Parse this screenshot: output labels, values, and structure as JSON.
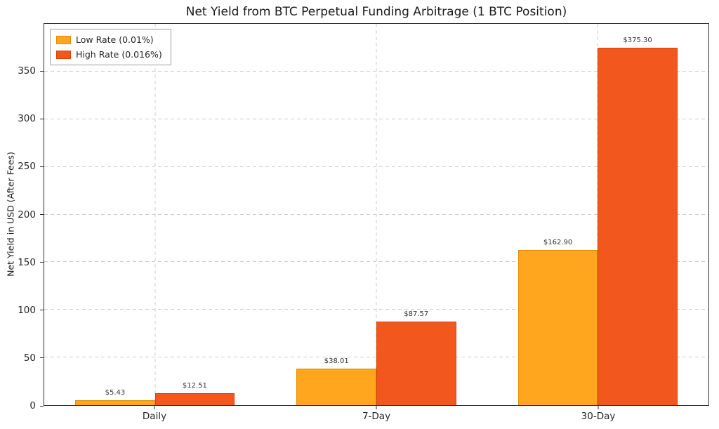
{
  "chart_data": {
    "type": "bar",
    "title": "Net Yield from BTC Perpetual Funding Arbitrage (1 BTC Position)",
    "xlabel": "",
    "ylabel": "Net Yield in USD (After Fees)",
    "categories": [
      "Daily",
      "7-Day",
      "30-Day"
    ],
    "series": [
      {
        "name": "Low Rate (0.01%)",
        "color": "#FFA51E",
        "edge": "#E08E00",
        "values": [
          5.43,
          38.01,
          162.9
        ],
        "labels": [
          "$5.43",
          "$38.01",
          "$162.90"
        ]
      },
      {
        "name": "High Rate (0.016%)",
        "color": "#F2571D",
        "edge": "#D2440C",
        "values": [
          12.51,
          87.57,
          375.3
        ],
        "labels": [
          "$12.51",
          "$87.57",
          "$375.30"
        ]
      }
    ],
    "ylim": [
      0,
      400
    ],
    "yticks": [
      0,
      50,
      100,
      150,
      200,
      250,
      300,
      350
    ],
    "grid": true,
    "grid_style": "dashed",
    "legend_position": "upper-left"
  }
}
